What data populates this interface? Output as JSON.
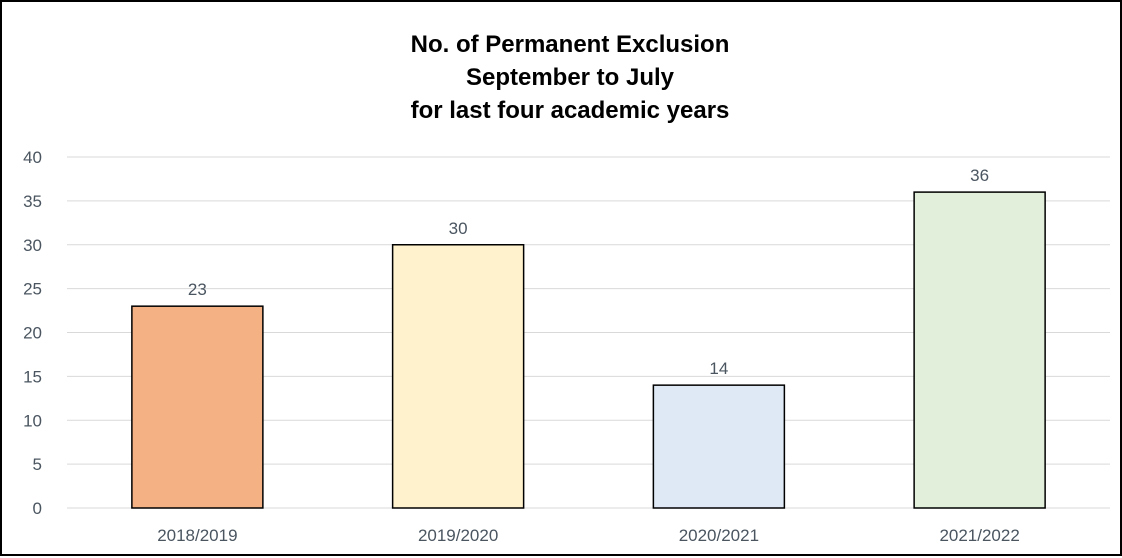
{
  "chart_data": {
    "type": "bar",
    "title_lines": [
      "No. of Permanent Exclusion",
      "September to July",
      "for last four academic years"
    ],
    "categories": [
      "2018/2019",
      "2019/2020",
      "2020/2021",
      "2021/2022"
    ],
    "values": [
      23,
      30,
      14,
      36
    ],
    "data_labels": [
      "23",
      "30",
      "14",
      "36"
    ],
    "bar_colors": [
      "#f4b183",
      "#fff2cc",
      "#dee9f5",
      "#e2efda"
    ],
    "bar_stroke": "#000000",
    "gridline_color": "#d9d9d9",
    "yticks": [
      0,
      5,
      10,
      15,
      20,
      25,
      30,
      35,
      40
    ],
    "ylim": [
      0,
      40
    ],
    "grid": true,
    "legend": "none",
    "xlabel": "",
    "ylabel": ""
  }
}
